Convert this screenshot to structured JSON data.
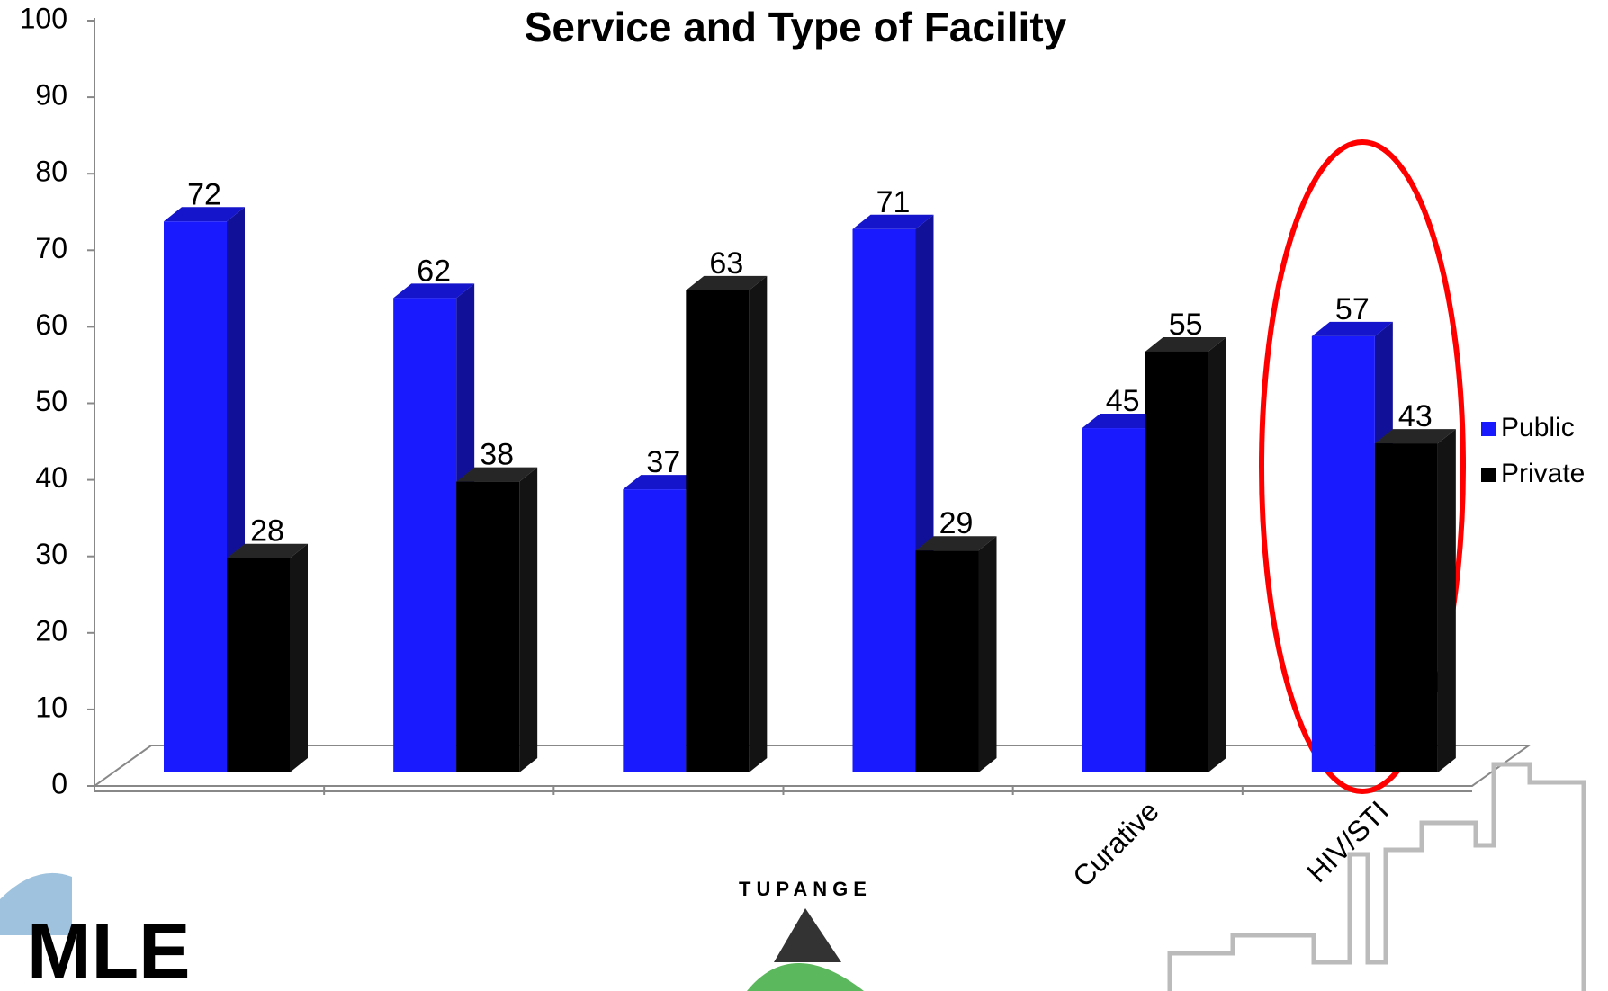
{
  "chart_data": {
    "type": "bar",
    "title": "Service  and Type of Facility",
    "categories": [
      null,
      null,
      null,
      null,
      "Curative",
      "HIV/STI"
    ],
    "series": [
      {
        "name": "Public",
        "color": "#1a1aff",
        "values": [
          72,
          62,
          37,
          71,
          45,
          57
        ]
      },
      {
        "name": "Private",
        "color": "#000000",
        "values": [
          28,
          38,
          63,
          29,
          55,
          43
        ]
      }
    ],
    "ylim": [
      0,
      100
    ],
    "yticks": [
      0,
      10,
      20,
      30,
      40,
      50,
      60,
      70,
      80,
      90,
      100
    ],
    "legend": "right",
    "value_labels_shown": true
  },
  "logo_left": "MLE",
  "logo_center": "TUPANGE"
}
